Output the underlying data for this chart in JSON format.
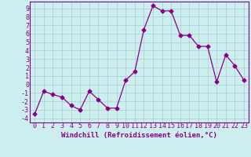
{
  "x": [
    0,
    1,
    2,
    3,
    4,
    5,
    6,
    7,
    8,
    9,
    10,
    11,
    12,
    13,
    14,
    15,
    16,
    17,
    18,
    19,
    20,
    21,
    22,
    23
  ],
  "y": [
    -3.5,
    -0.8,
    -1.2,
    -1.5,
    -2.5,
    -3.0,
    -0.8,
    -1.8,
    -2.8,
    -2.8,
    0.5,
    1.5,
    6.5,
    9.3,
    8.7,
    8.7,
    5.8,
    5.8,
    4.5,
    4.5,
    0.3,
    3.5,
    2.2,
    0.5
  ],
  "line_color": "#880088",
  "marker": "D",
  "marker_size": 2.5,
  "bg_color": "#cceeee",
  "grid_color": "#aacccc",
  "xlabel": "Windchill (Refroidissement éolien,°C)",
  "yticks": [
    -4,
    -3,
    -2,
    -1,
    0,
    1,
    2,
    3,
    4,
    5,
    6,
    7,
    8,
    9
  ],
  "ylim": [
    -4.5,
    9.8
  ],
  "xlim": [
    -0.5,
    23.5
  ],
  "xticks": [
    0,
    1,
    2,
    3,
    4,
    5,
    6,
    7,
    8,
    9,
    10,
    11,
    12,
    13,
    14,
    15,
    16,
    17,
    18,
    19,
    20,
    21,
    22,
    23
  ],
  "label_color": "#880088",
  "tick_color": "#880088",
  "xlabel_fontsize": 6.5,
  "tick_fontsize": 6.0,
  "spine_color": "#880088"
}
